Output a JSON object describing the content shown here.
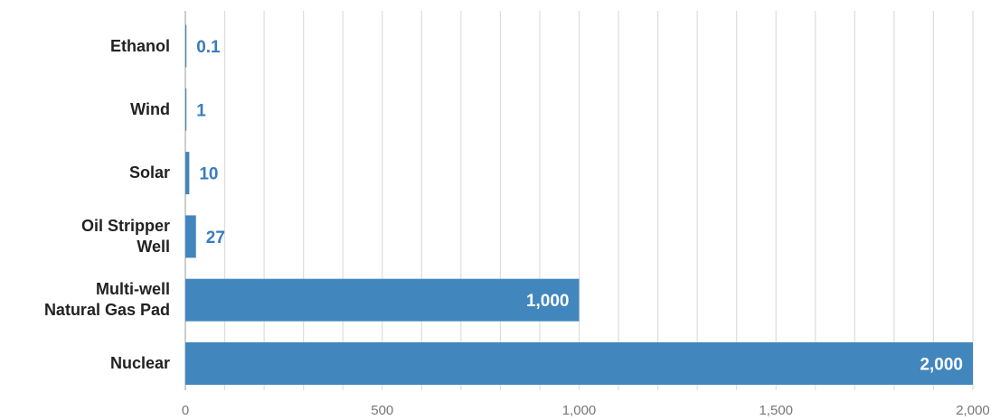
{
  "chart_data": {
    "type": "bar",
    "orientation": "horizontal",
    "categories": [
      [
        "Ethanol"
      ],
      [
        "Wind"
      ],
      [
        "Solar"
      ],
      [
        "Oil Stripper",
        "Well"
      ],
      [
        "Multi-well",
        "Natural Gas Pad"
      ],
      [
        "Nuclear"
      ]
    ],
    "values": [
      0.1,
      1,
      10,
      27,
      1000,
      2000
    ],
    "value_labels": [
      "0.1",
      "1",
      "10",
      "27",
      "1,000",
      "2,000"
    ],
    "xlim": [
      0,
      2000
    ],
    "x_ticks": [
      0,
      500,
      1000,
      1500,
      2000
    ],
    "x_tick_labels": [
      "0",
      "500",
      "1,000",
      "1,500",
      "2,000"
    ],
    "grid": true,
    "title": "",
    "xlabel": "",
    "ylabel": "",
    "colors": {
      "bar": "#4286be",
      "label_outside": "#3a7bbf",
      "label_inside": "#ffffff",
      "grid": "#dddddd",
      "axis": "#bbbbbb"
    }
  }
}
